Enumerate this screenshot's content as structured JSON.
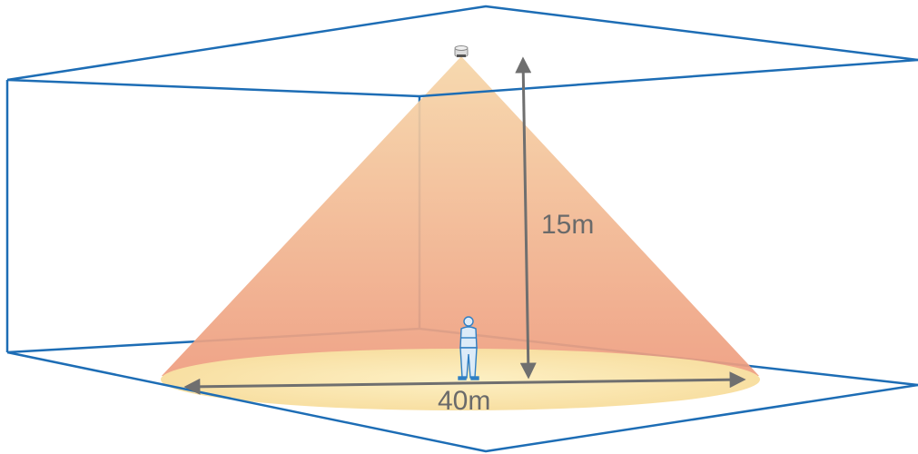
{
  "labels": {
    "height": "15m",
    "width": "40m"
  },
  "colors": {
    "room_edge": "#1d6db5",
    "cone_top": "#f6d6a8",
    "cone_bottom": "#ee9c7e",
    "floor_spot": "#fbe7ae",
    "dimension_arrow": "#6f6f6f",
    "person": "#2f7fc4"
  },
  "icons": {
    "sensor": "ceiling-sensor-icon",
    "person": "person-figure-icon"
  }
}
